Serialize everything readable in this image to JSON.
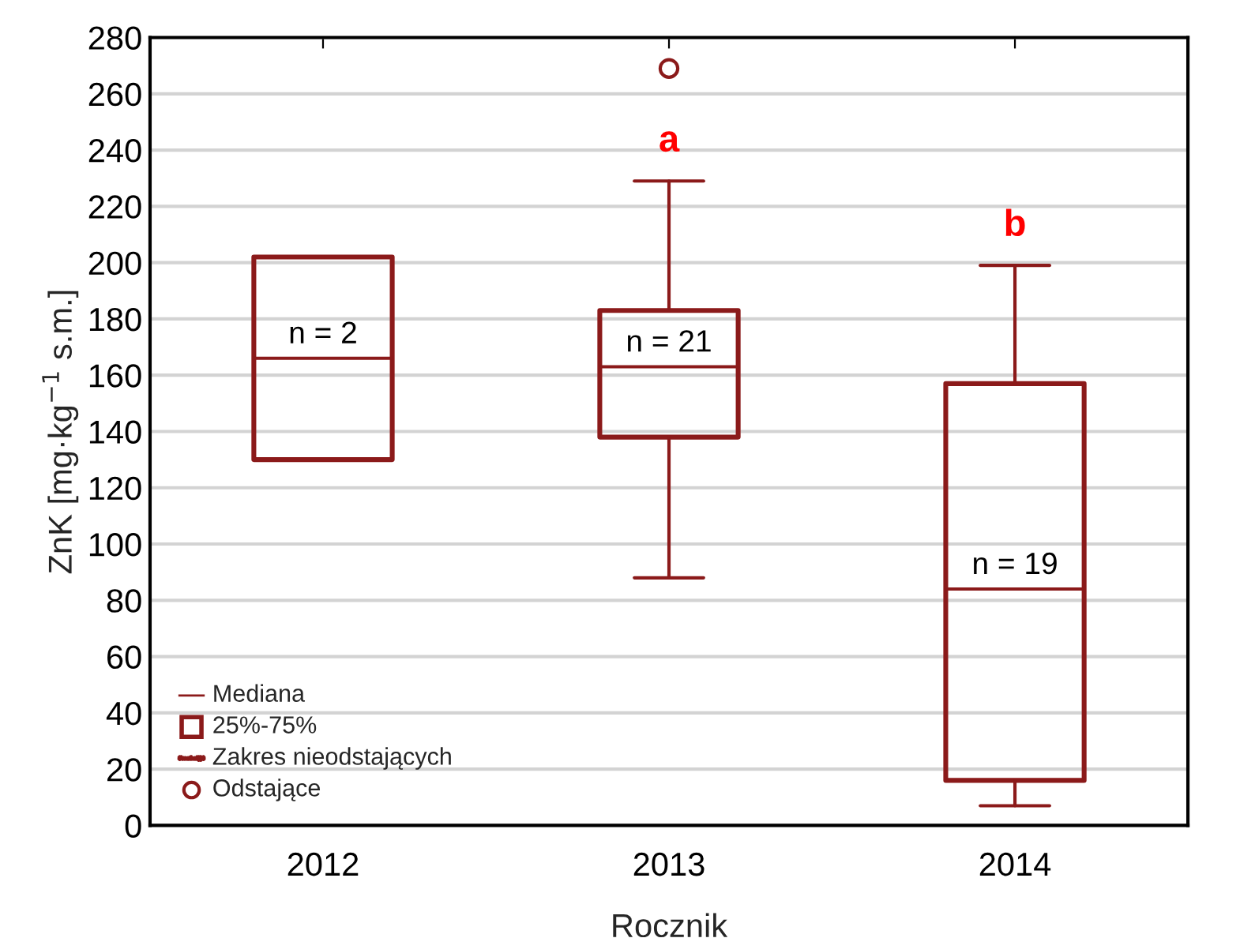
{
  "chart_data": {
    "type": "box",
    "xlabel": "Rocznik",
    "ylabel": "ZnK [mg·kg$^{−1}$ s.m.]",
    "categories": [
      "2012",
      "2013",
      "2014"
    ],
    "series": [
      {
        "color": "#8b1a1a",
        "boxes": [
          {
            "low": 130,
            "q1": 130,
            "median": 166,
            "q3": 202,
            "high": 202
          },
          {
            "low": 88,
            "q1": 138,
            "median": 163,
            "q3": 183,
            "high": 229,
            "outliers": [
              269
            ]
          },
          {
            "low": 7,
            "q1": 16,
            "median": 84,
            "q3": 157,
            "high": 199
          }
        ]
      }
    ],
    "ylim": [
      0,
      280
    ],
    "yticks": [
      0,
      20,
      40,
      60,
      80,
      100,
      120,
      140,
      160,
      180,
      200,
      220,
      240,
      260,
      280
    ],
    "grid": "y",
    "annotations": [
      {
        "text": "n = 2",
        "x": "2012",
        "y": 166
      },
      {
        "text": "n = 21",
        "x": "2013",
        "y": 163
      },
      {
        "text": "n = 19",
        "x": "2014",
        "y": 84
      },
      {
        "text": "a",
        "x": "2013",
        "y": 229
      },
      {
        "text": "b",
        "x": "2014",
        "y": 199
      },
      "Mediana",
      "25%-75%",
      "Zakres nieodstających",
      "Odstające"
    ]
  }
}
